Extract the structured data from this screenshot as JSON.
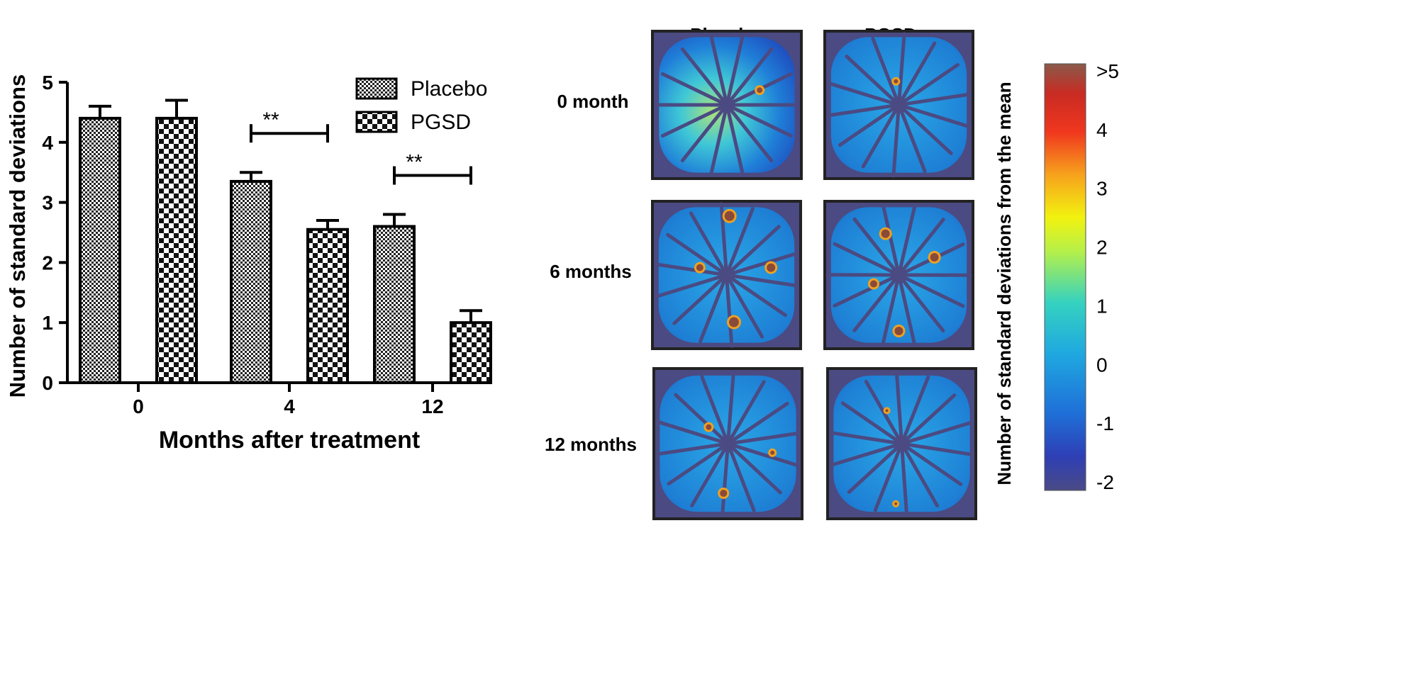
{
  "chart_data": [
    {
      "type": "bar",
      "xlabel": "Months after treatment",
      "ylabel": "Number of standard deviations",
      "categories": [
        "0",
        "4",
        "12"
      ],
      "series": [
        {
          "name": "Placebo",
          "values": [
            4.4,
            3.35,
            2.6
          ],
          "errors": [
            0.2,
            0.15,
            0.2
          ]
        },
        {
          "name": "PGSD",
          "values": [
            4.4,
            2.55,
            1.0
          ],
          "errors": [
            0.3,
            0.15,
            0.2
          ]
        }
      ],
      "ylim": [
        0,
        5
      ],
      "yticks": [
        "0",
        "1",
        "2",
        "3",
        "4",
        "5"
      ],
      "legend_position": "top-right",
      "grid": false,
      "significance": [
        {
          "category": "4",
          "label": "**"
        },
        {
          "category": "12",
          "label": "**"
        }
      ]
    },
    {
      "type": "heatmap",
      "columns": [
        "Placebo",
        "PGSD"
      ],
      "rows": [
        "0 month",
        "6 months",
        "12 months"
      ],
      "colorbar": {
        "label": "Number of standard deviations from the mean",
        "ticks": [
          ">5",
          "4",
          "3",
          "2",
          "1",
          "0",
          "-1",
          "-2"
        ],
        "range": [
          -2,
          5
        ]
      }
    }
  ]
}
